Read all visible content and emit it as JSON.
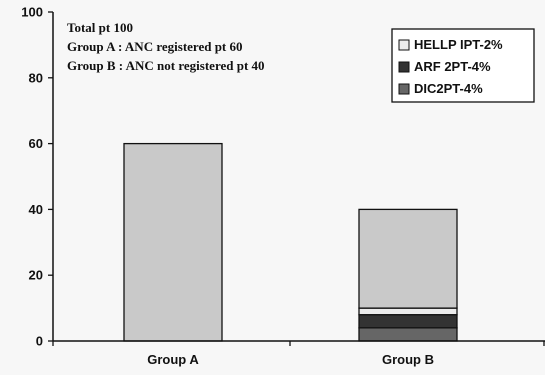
{
  "chart_data": {
    "type": "bar",
    "stacked": true,
    "title": "",
    "xlabel": "",
    "ylabel": "",
    "ylim": [
      0,
      100
    ],
    "yticks": [
      "0",
      "20",
      "40",
      "60",
      "80",
      "100"
    ],
    "categories": [
      "Group A",
      "Group B"
    ],
    "series": [
      {
        "key": "dic",
        "values": [
          0,
          4
        ],
        "color": "#666666"
      },
      {
        "key": "arf",
        "values": [
          0,
          4
        ],
        "color": "#333333"
      },
      {
        "key": "hellp",
        "values": [
          0,
          2
        ],
        "color": "#ececec"
      },
      {
        "key": "rest",
        "values": [
          60,
          30
        ],
        "color": "#c9c9c9"
      }
    ],
    "annotations": [
      "Total pt 100",
      "Group A : ANC registered pt 60",
      "Group B : ANC not registered pt 40"
    ],
    "legend": {
      "placement": "top-right",
      "entries": [
        {
          "label": "HELLP IPT-2%",
          "color": "#ececec"
        },
        {
          "label": "ARF 2PT-4%",
          "color": "#333333"
        },
        {
          "label": "DIC2PT-4%",
          "color": "#666666"
        }
      ]
    },
    "grid": false
  }
}
